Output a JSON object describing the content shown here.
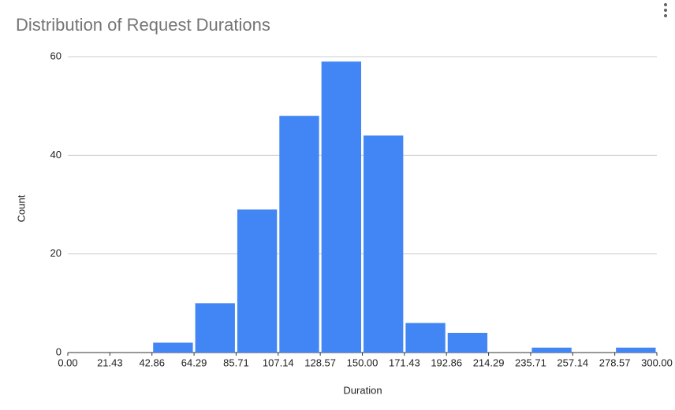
{
  "chart_data": {
    "type": "histogram",
    "title": "Distribution of Request Durations",
    "x_label": "Duration",
    "y_label": "Count",
    "bins": [
      0,
      21.43,
      42.86,
      64.29,
      85.71,
      107.14,
      128.57,
      150,
      171.43,
      192.86,
      214.29,
      235.71,
      257.14,
      278.57,
      300
    ],
    "values": [
      0,
      0,
      2,
      10,
      29,
      48,
      59,
      44,
      6,
      4,
      0,
      1,
      0,
      1
    ],
    "color": "#4285f4",
    "xlim": [
      0,
      300
    ],
    "xticks": [
      {
        "value": 0,
        "label": "0.00"
      },
      {
        "value": 21.43,
        "label": "21.43"
      },
      {
        "value": 42.86,
        "label": "42.86"
      },
      {
        "value": 64.29,
        "label": "64.29"
      },
      {
        "value": 85.71,
        "label": "85.71"
      },
      {
        "value": 107.14,
        "label": "107.14"
      },
      {
        "value": 128.57,
        "label": "128.57"
      },
      {
        "value": 150,
        "label": "150.00"
      },
      {
        "value": 171.43,
        "label": "171.43"
      },
      {
        "value": 192.86,
        "label": "192.86"
      },
      {
        "value": 214.29,
        "label": "214.29"
      },
      {
        "value": 235.71,
        "label": "235.71"
      },
      {
        "value": 257.14,
        "label": "257.14"
      },
      {
        "value": 278.57,
        "label": "278.57"
      },
      {
        "value": 300,
        "label": "300.00"
      }
    ],
    "ylim": [
      0,
      60
    ],
    "yticks": [
      0,
      20,
      40,
      60
    ],
    "grid": true
  }
}
